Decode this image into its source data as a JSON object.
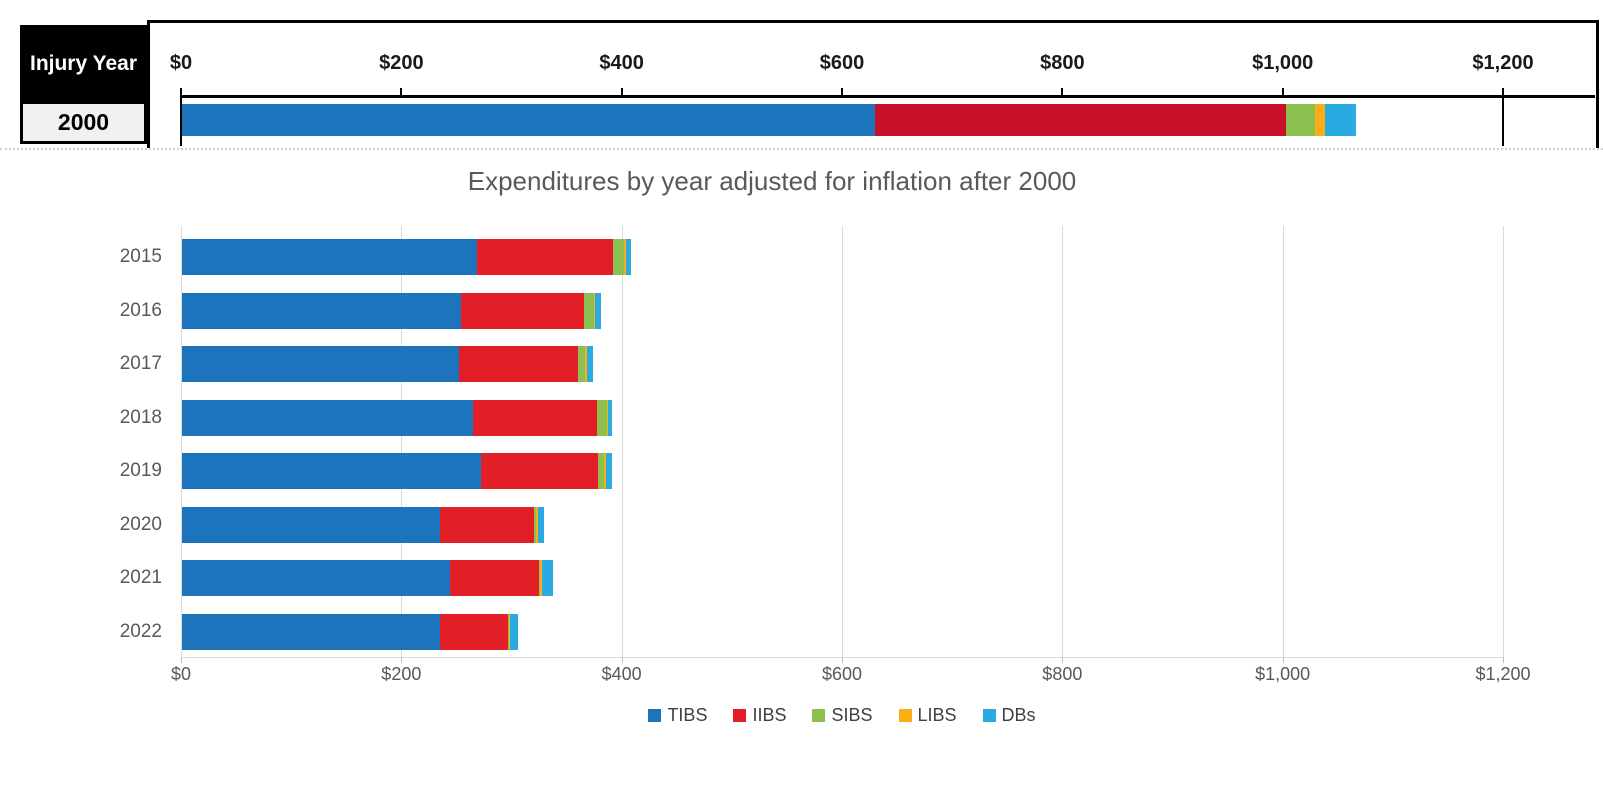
{
  "table": {
    "header": "Injury Year",
    "selected_year": "2000"
  },
  "palette": {
    "tibs_blue": "#1C75BC",
    "iibs_red_top": "#C8102B",
    "iibs_red_bottom": "#E21E26",
    "sibs_green": "#8CC152",
    "libs_yellow": "#FBAE17",
    "dbs_cyan": "#29ABE2",
    "title_gray": "#595959",
    "gridline_gray": "#D9D9D9"
  },
  "chart_data": [
    {
      "name": "injury-year-2000-expenditures",
      "type": "bar",
      "orientation": "horizontal-stacked",
      "categories": [
        "2000"
      ],
      "series": [
        {
          "name": "TIBS",
          "color": "#1C75BC",
          "values": [
            629
          ]
        },
        {
          "name": "IIBS",
          "color": "#C8102B",
          "values": [
            373
          ]
        },
        {
          "name": "SIBS",
          "color": "#8CC152",
          "values": [
            27
          ]
        },
        {
          "name": "LIBS",
          "color": "#FBAE17",
          "values": [
            9
          ]
        },
        {
          "name": "DBs",
          "color": "#29ABE2",
          "values": [
            28
          ]
        }
      ],
      "xlim": [
        0,
        1200
      ],
      "x_tick_labels": [
        "$0",
        "$200",
        "$400",
        "$600",
        "$800",
        "$1,000",
        "$1,200"
      ],
      "grid": false,
      "legend_position": "none"
    },
    {
      "name": "expenditures-by-year",
      "type": "bar",
      "orientation": "horizontal-stacked",
      "title": "Expenditures by year adjusted for inflation after 2000",
      "categories": [
        "2015",
        "2016",
        "2017",
        "2018",
        "2019",
        "2020",
        "2021",
        "2022"
      ],
      "series": [
        {
          "name": "TIBS",
          "color": "#1C75BC",
          "values": [
            268,
            253,
            251,
            264,
            271,
            234,
            243,
            234
          ]
        },
        {
          "name": "IIBS",
          "color": "#E21E26",
          "values": [
            123,
            112,
            108,
            113,
            107,
            86,
            81,
            62
          ]
        },
        {
          "name": "SIBS",
          "color": "#8CC152",
          "values": [
            10,
            9,
            7,
            9,
            5,
            1,
            1,
            1
          ]
        },
        {
          "name": "LIBS",
          "color": "#FBAE17",
          "values": [
            2,
            1,
            2,
            1,
            2,
            2,
            2,
            1
          ]
        },
        {
          "name": "DBs",
          "color": "#29ABE2",
          "values": [
            5,
            5,
            5,
            3,
            5,
            6,
            10,
            7
          ]
        }
      ],
      "xlim": [
        0,
        1200
      ],
      "x_tick_labels": [
        "$0",
        "$200",
        "$400",
        "$600",
        "$800",
        "$1,000",
        "$1,200"
      ],
      "grid": true,
      "legend_position": "bottom"
    }
  ]
}
